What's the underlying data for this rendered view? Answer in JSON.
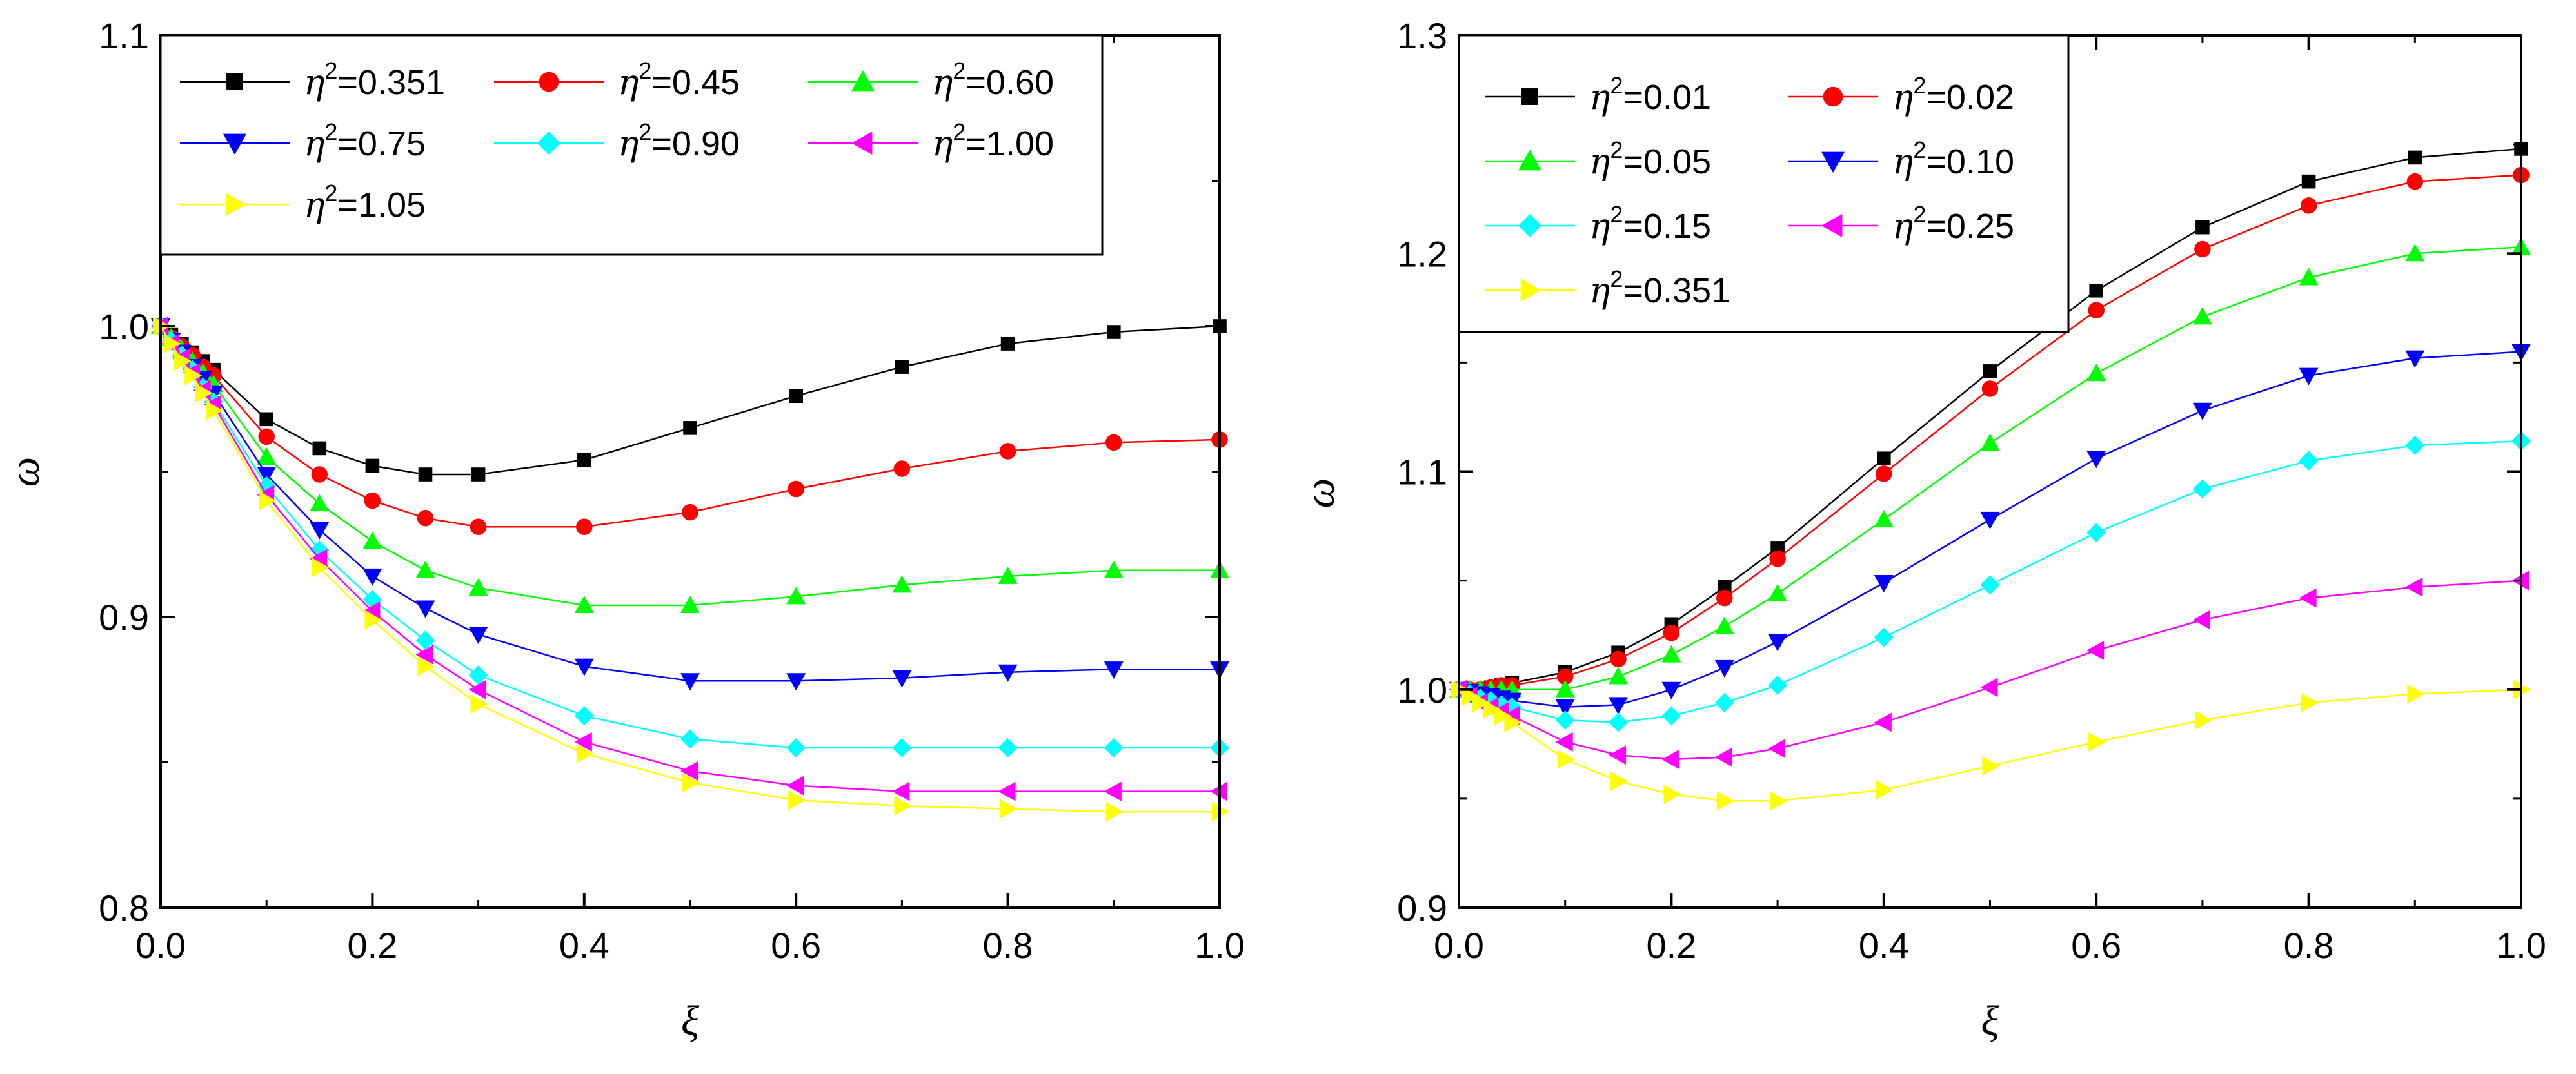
{
  "chart_data": [
    {
      "type": "line",
      "title": "",
      "xlabel": "ξ",
      "ylabel": "ω",
      "xlim": [
        0,
        1
      ],
      "ylim": [
        0.8,
        1.1
      ],
      "x_ticks": [
        "0.0",
        "0.2",
        "0.4",
        "0.6",
        "0.8",
        "1.0"
      ],
      "y_ticks": [
        "0.8",
        "0.9",
        "1.0",
        "1.1"
      ],
      "grid": false,
      "legend_position": "top",
      "series": [
        {
          "name": "=0.351",
          "color": "#000000",
          "marker": "square",
          "x": [
            0,
            0.01,
            0.02,
            0.03,
            0.04,
            0.05,
            0.1,
            0.15,
            0.2,
            0.25,
            0.3,
            0.4,
            0.5,
            0.6,
            0.7,
            0.8,
            0.9,
            1.0
          ],
          "y": [
            1.0,
            0.997,
            0.994,
            0.991,
            0.988,
            0.985,
            0.968,
            0.958,
            0.952,
            0.949,
            0.949,
            0.954,
            0.965,
            0.976,
            0.986,
            0.994,
            0.998,
            1.0
          ]
        },
        {
          "name": "=0.45",
          "color": "#ff0000",
          "marker": "circle",
          "x": [
            0,
            0.01,
            0.02,
            0.03,
            0.04,
            0.05,
            0.1,
            0.15,
            0.2,
            0.25,
            0.3,
            0.4,
            0.5,
            0.6,
            0.7,
            0.8,
            0.9,
            1.0
          ],
          "y": [
            1.0,
            0.996,
            0.993,
            0.99,
            0.986,
            0.983,
            0.962,
            0.949,
            0.94,
            0.934,
            0.931,
            0.931,
            0.936,
            0.944,
            0.951,
            0.957,
            0.96,
            0.961
          ]
        },
        {
          "name": "=0.60",
          "color": "#00ff00",
          "marker": "triangle-up",
          "x": [
            0,
            0.01,
            0.02,
            0.03,
            0.04,
            0.05,
            0.1,
            0.15,
            0.2,
            0.25,
            0.3,
            0.4,
            0.5,
            0.6,
            0.7,
            0.8,
            0.9,
            1.0
          ],
          "y": [
            1.0,
            0.996,
            0.992,
            0.988,
            0.984,
            0.98,
            0.955,
            0.939,
            0.926,
            0.916,
            0.91,
            0.904,
            0.904,
            0.907,
            0.911,
            0.914,
            0.916,
            0.916
          ]
        },
        {
          "name": "=0.75",
          "color": "#0000ff",
          "marker": "triangle-down",
          "x": [
            0,
            0.01,
            0.02,
            0.03,
            0.04,
            0.05,
            0.1,
            0.15,
            0.2,
            0.25,
            0.3,
            0.4,
            0.5,
            0.6,
            0.7,
            0.8,
            0.9,
            1.0
          ],
          "y": [
            1.0,
            0.995,
            0.991,
            0.986,
            0.982,
            0.977,
            0.949,
            0.93,
            0.914,
            0.903,
            0.894,
            0.883,
            0.878,
            0.878,
            0.879,
            0.881,
            0.882,
            0.882
          ]
        },
        {
          "name": "=0.90",
          "color": "#00ffff",
          "marker": "diamond",
          "x": [
            0,
            0.01,
            0.02,
            0.03,
            0.04,
            0.05,
            0.1,
            0.15,
            0.2,
            0.25,
            0.3,
            0.4,
            0.5,
            0.6,
            0.7,
            0.8,
            0.9,
            1.0
          ],
          "y": [
            1.0,
            0.995,
            0.99,
            0.985,
            0.979,
            0.974,
            0.945,
            0.923,
            0.906,
            0.892,
            0.88,
            0.866,
            0.858,
            0.855,
            0.855,
            0.855,
            0.855,
            0.855
          ]
        },
        {
          "name": "=1.00",
          "color": "#ff00ff",
          "marker": "triangle-left",
          "x": [
            0,
            0.01,
            0.02,
            0.03,
            0.04,
            0.05,
            0.1,
            0.15,
            0.2,
            0.25,
            0.3,
            0.4,
            0.5,
            0.6,
            0.7,
            0.8,
            0.9,
            1.0
          ],
          "y": [
            1.0,
            0.994,
            0.989,
            0.984,
            0.978,
            0.973,
            0.942,
            0.92,
            0.902,
            0.887,
            0.875,
            0.857,
            0.847,
            0.842,
            0.84,
            0.84,
            0.84,
            0.84
          ]
        },
        {
          "name": "=1.05",
          "color": "#ffff00",
          "marker": "triangle-right",
          "x": [
            0,
            0.01,
            0.02,
            0.03,
            0.04,
            0.05,
            0.1,
            0.15,
            0.2,
            0.25,
            0.3,
            0.4,
            0.5,
            0.6,
            0.7,
            0.8,
            0.9,
            1.0
          ],
          "y": [
            1.0,
            0.994,
            0.988,
            0.983,
            0.977,
            0.971,
            0.94,
            0.917,
            0.899,
            0.883,
            0.87,
            0.853,
            0.843,
            0.837,
            0.835,
            0.834,
            0.833,
            0.833
          ]
        }
      ]
    },
    {
      "type": "line",
      "title": "",
      "xlabel": "ξ",
      "ylabel": "ω",
      "xlim": [
        0,
        1
      ],
      "ylim": [
        0.9,
        1.3
      ],
      "x_ticks": [
        "0.0",
        "0.2",
        "0.4",
        "0.6",
        "0.8",
        "1.0"
      ],
      "y_ticks": [
        "0.9",
        "1.0",
        "1.1",
        "1.2",
        "1.3"
      ],
      "grid": false,
      "legend_position": "top-left",
      "series": [
        {
          "name": "=0.01",
          "color": "#000000",
          "marker": "square",
          "x": [
            0,
            0.01,
            0.02,
            0.03,
            0.04,
            0.05,
            0.1,
            0.15,
            0.2,
            0.25,
            0.3,
            0.4,
            0.5,
            0.6,
            0.7,
            0.8,
            0.9,
            1.0
          ],
          "y": [
            1.0,
            1.0,
            1.0,
            1.001,
            1.002,
            1.003,
            1.008,
            1.017,
            1.03,
            1.047,
            1.065,
            1.106,
            1.146,
            1.183,
            1.212,
            1.233,
            1.244,
            1.248
          ]
        },
        {
          "name": "=0.02",
          "color": "#ff0000",
          "marker": "circle",
          "x": [
            0,
            0.01,
            0.02,
            0.03,
            0.04,
            0.05,
            0.1,
            0.15,
            0.2,
            0.25,
            0.3,
            0.4,
            0.5,
            0.6,
            0.7,
            0.8,
            0.9,
            1.0
          ],
          "y": [
            1.0,
            1.0,
            1.0,
            1.001,
            1.002,
            1.002,
            1.006,
            1.014,
            1.026,
            1.042,
            1.06,
            1.099,
            1.138,
            1.174,
            1.202,
            1.222,
            1.233,
            1.236
          ]
        },
        {
          "name": "=0.05",
          "color": "#00ff00",
          "marker": "triangle-up",
          "x": [
            0,
            0.01,
            0.02,
            0.03,
            0.04,
            0.05,
            0.1,
            0.15,
            0.2,
            0.25,
            0.3,
            0.4,
            0.5,
            0.6,
            0.7,
            0.8,
            0.9,
            1.0
          ],
          "y": [
            1.0,
            1.0,
            1.0,
            1.0,
            1.0,
            1.0,
            1.0,
            1.006,
            1.016,
            1.029,
            1.044,
            1.078,
            1.113,
            1.145,
            1.171,
            1.189,
            1.2,
            1.203
          ]
        },
        {
          "name": "=0.10",
          "color": "#0000ff",
          "marker": "triangle-down",
          "x": [
            0,
            0.01,
            0.02,
            0.03,
            0.04,
            0.05,
            0.1,
            0.15,
            0.2,
            0.25,
            0.3,
            0.4,
            0.5,
            0.6,
            0.7,
            0.8,
            0.9,
            1.0
          ],
          "y": [
            1.0,
            0.999,
            0.998,
            0.997,
            0.996,
            0.995,
            0.992,
            0.993,
            1.0,
            1.01,
            1.022,
            1.049,
            1.078,
            1.106,
            1.128,
            1.144,
            1.152,
            1.155
          ]
        },
        {
          "name": "=0.15",
          "color": "#00ffff",
          "marker": "diamond",
          "x": [
            0,
            0.01,
            0.02,
            0.03,
            0.04,
            0.05,
            0.1,
            0.15,
            0.2,
            0.25,
            0.3,
            0.4,
            0.5,
            0.6,
            0.7,
            0.8,
            0.9,
            1.0
          ],
          "y": [
            1.0,
            0.998,
            0.996,
            0.995,
            0.993,
            0.992,
            0.986,
            0.985,
            0.988,
            0.994,
            1.002,
            1.024,
            1.048,
            1.072,
            1.092,
            1.105,
            1.112,
            1.114
          ]
        },
        {
          "name": "=0.25",
          "color": "#ff00ff",
          "marker": "triangle-left",
          "x": [
            0,
            0.01,
            0.02,
            0.03,
            0.04,
            0.05,
            0.1,
            0.15,
            0.2,
            0.25,
            0.3,
            0.4,
            0.5,
            0.6,
            0.7,
            0.8,
            0.9,
            1.0
          ],
          "y": [
            1.0,
            0.997,
            0.994,
            0.992,
            0.99,
            0.988,
            0.976,
            0.97,
            0.968,
            0.969,
            0.973,
            0.985,
            1.001,
            1.018,
            1.032,
            1.042,
            1.047,
            1.05
          ]
        },
        {
          "name": "=0.351",
          "color": "#ffff00",
          "marker": "triangle-right",
          "x": [
            0,
            0.01,
            0.02,
            0.03,
            0.04,
            0.05,
            0.1,
            0.15,
            0.2,
            0.25,
            0.3,
            0.4,
            0.5,
            0.6,
            0.7,
            0.8,
            0.9,
            1.0
          ],
          "y": [
            1.0,
            0.997,
            0.994,
            0.991,
            0.988,
            0.985,
            0.968,
            0.958,
            0.952,
            0.949,
            0.949,
            0.954,
            0.965,
            0.976,
            0.986,
            0.994,
            0.998,
            1.0
          ]
        }
      ]
    }
  ]
}
